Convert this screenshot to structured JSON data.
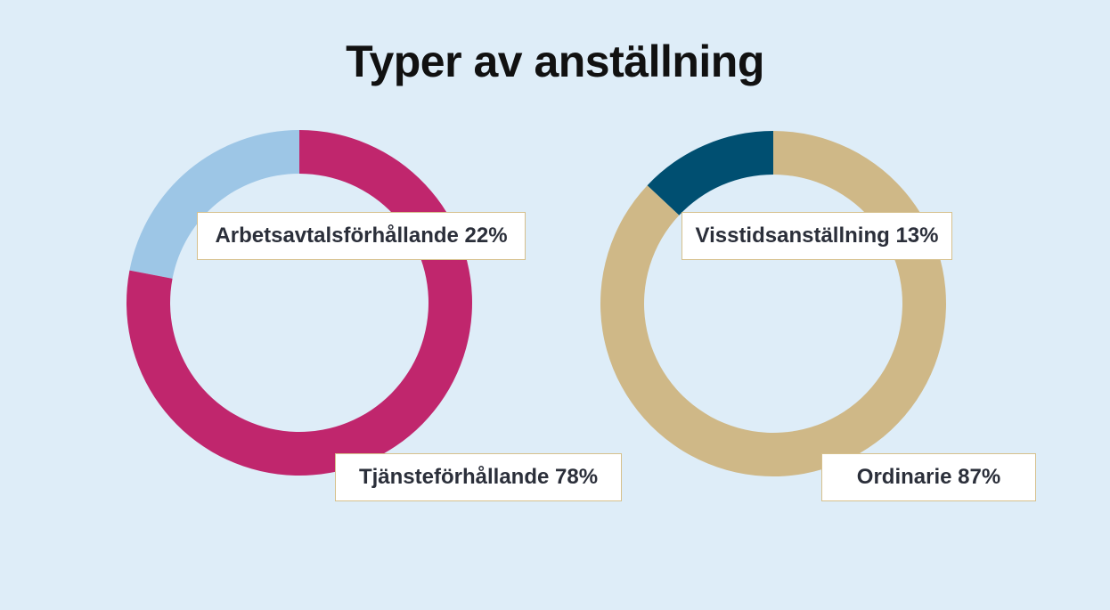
{
  "title": "Typer av anställning",
  "chart_data": [
    {
      "type": "pie",
      "donut": true,
      "slices": [
        {
          "name": "Arbetsavtalsförhållande",
          "value": 22,
          "label": "Arbetsavtalsförhållande 22%",
          "color": "#9dc6e6"
        },
        {
          "name": "Tjänsteförhållande",
          "value": 78,
          "label": "Tjänsteförhållande 78%",
          "color": "#c0266d"
        }
      ]
    },
    {
      "type": "pie",
      "donut": true,
      "slices": [
        {
          "name": "Visstidsanställning",
          "value": 13,
          "label": "Visstidsanställning 13%",
          "color": "#004f71"
        },
        {
          "name": "Ordinarie",
          "value": 87,
          "label": "Ordinarie 87%",
          "color": "#cfb887"
        }
      ]
    }
  ]
}
